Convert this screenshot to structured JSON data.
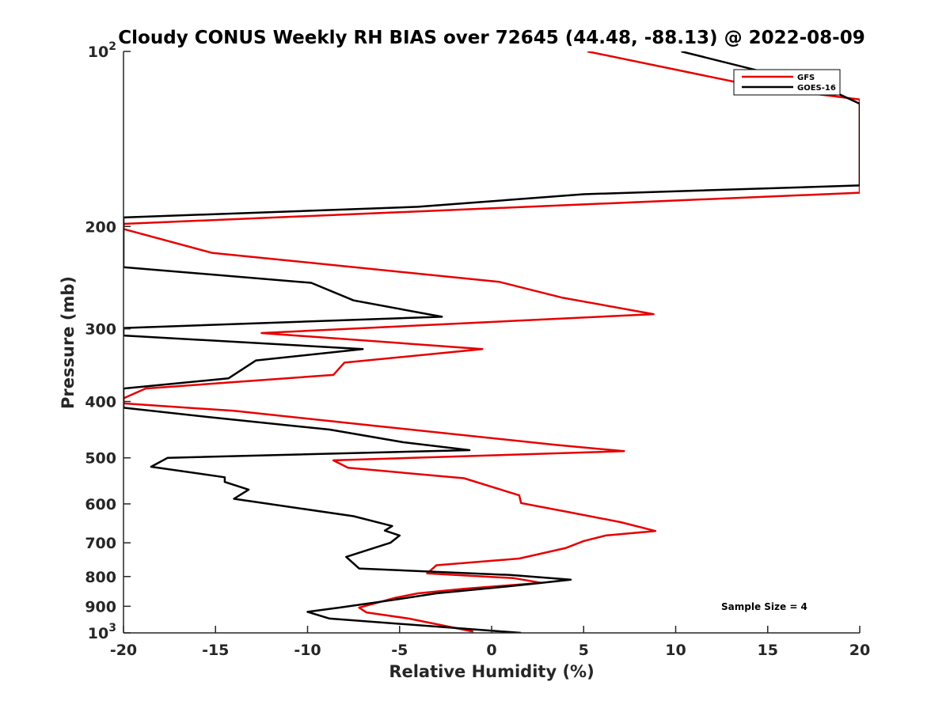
{
  "chart_data": {
    "type": "line",
    "title": "Cloudy CONUS Weekly RH BIAS over 72645 (44.48, -88.13) @ 2022-08-09",
    "xlabel": "Relative Humidity (%)",
    "ylabel": "Pressure (mb)",
    "xlim": [
      -20,
      20
    ],
    "ylim": [
      100,
      1000
    ],
    "yscale": "log",
    "y_reversed": true,
    "grid": false,
    "legend_position": "top-right",
    "x_ticks": [
      "-20",
      "-15",
      "-10",
      "-5",
      "0",
      "5",
      "10",
      "15",
      "20"
    ],
    "y_ticks": [
      {
        "value": 100,
        "base": "10",
        "exp": "2"
      },
      {
        "value": 200,
        "label": "200"
      },
      {
        "value": 300,
        "label": "300"
      },
      {
        "value": 400,
        "label": "400"
      },
      {
        "value": 500,
        "label": "500"
      },
      {
        "value": 600,
        "label": "600"
      },
      {
        "value": 700,
        "label": "700"
      },
      {
        "value": 800,
        "label": "800"
      },
      {
        "value": 900,
        "label": "900"
      },
      {
        "value": 1000,
        "base": "10",
        "exp": "3"
      }
    ],
    "annotation": "Sample Size = 4",
    "series": [
      {
        "name": "GFS",
        "color": "#e60000",
        "points": [
          [
            5.2,
            100
          ],
          [
            14.5,
            115
          ],
          [
            20,
            121
          ],
          [
            20,
            122
          ],
          [
            20,
            175
          ],
          [
            -20,
            198
          ],
          [
            -20,
            202
          ],
          [
            -15.2,
            222
          ],
          [
            0.4,
            249
          ],
          [
            3.8,
            265
          ],
          [
            8.8,
            283
          ],
          [
            -12.5,
            305
          ],
          [
            -0.5,
            325
          ],
          [
            -8,
            343
          ],
          [
            -8.6,
            360
          ],
          [
            -18.8,
            380
          ],
          [
            -20,
            395
          ],
          [
            -20,
            403
          ],
          [
            -14,
            415
          ],
          [
            -6.5,
            440
          ],
          [
            3.5,
            475
          ],
          [
            7.2,
            487
          ],
          [
            -8.6,
            505
          ],
          [
            -7.8,
            520
          ],
          [
            -1.5,
            542
          ],
          [
            1.5,
            580
          ],
          [
            1.6,
            598
          ],
          [
            4.2,
            620
          ],
          [
            7,
            645
          ],
          [
            8.9,
            668
          ],
          [
            6.2,
            680
          ],
          [
            5,
            695
          ],
          [
            4,
            715
          ],
          [
            1.5,
            745
          ],
          [
            -3,
            765
          ],
          [
            -3.5,
            790
          ],
          [
            1.2,
            805
          ],
          [
            2.7,
            820
          ],
          [
            -1.5,
            840
          ],
          [
            -4,
            855
          ],
          [
            -5.2,
            870
          ],
          [
            -7.2,
            905
          ],
          [
            -6.8,
            922
          ],
          [
            -4.5,
            945
          ],
          [
            -1,
            995
          ]
        ]
      },
      {
        "name": "GOES-16",
        "color": "#000000",
        "points": [
          [
            10.3,
            100
          ],
          [
            18,
            115
          ],
          [
            20,
            123
          ],
          [
            20,
            170
          ],
          [
            5,
            176
          ],
          [
            -4,
            185
          ],
          [
            -20,
            193
          ],
          [
            -20,
            235
          ],
          [
            -9.8,
            250
          ],
          [
            -7.5,
            268
          ],
          [
            -2.7,
            286
          ],
          [
            -20,
            299
          ],
          [
            -20,
            308
          ],
          [
            -7,
            325
          ],
          [
            -12.8,
            340
          ],
          [
            -14.3,
            365
          ],
          [
            -20,
            380
          ],
          [
            -20,
            410
          ],
          [
            -15.5,
            425
          ],
          [
            -8.8,
            447
          ],
          [
            -4.8,
            470
          ],
          [
            -1.2,
            485
          ],
          [
            -17.6,
            500
          ],
          [
            -18.5,
            518
          ],
          [
            -14.5,
            540
          ],
          [
            -14.5,
            550
          ],
          [
            -13.2,
            567
          ],
          [
            -14,
            588
          ],
          [
            -7.5,
            630
          ],
          [
            -5.4,
            655
          ],
          [
            -5.8,
            667
          ],
          [
            -5,
            680
          ],
          [
            -5.5,
            700
          ],
          [
            -7.9,
            740
          ],
          [
            -7.2,
            775
          ],
          [
            1,
            795
          ],
          [
            4.3,
            810
          ],
          [
            1.5,
            828
          ],
          [
            -3,
            855
          ],
          [
            -5.6,
            880
          ],
          [
            -8.3,
            905
          ],
          [
            -10,
            920
          ],
          [
            -8.8,
            945
          ],
          [
            1.6,
            1000
          ]
        ]
      }
    ]
  }
}
